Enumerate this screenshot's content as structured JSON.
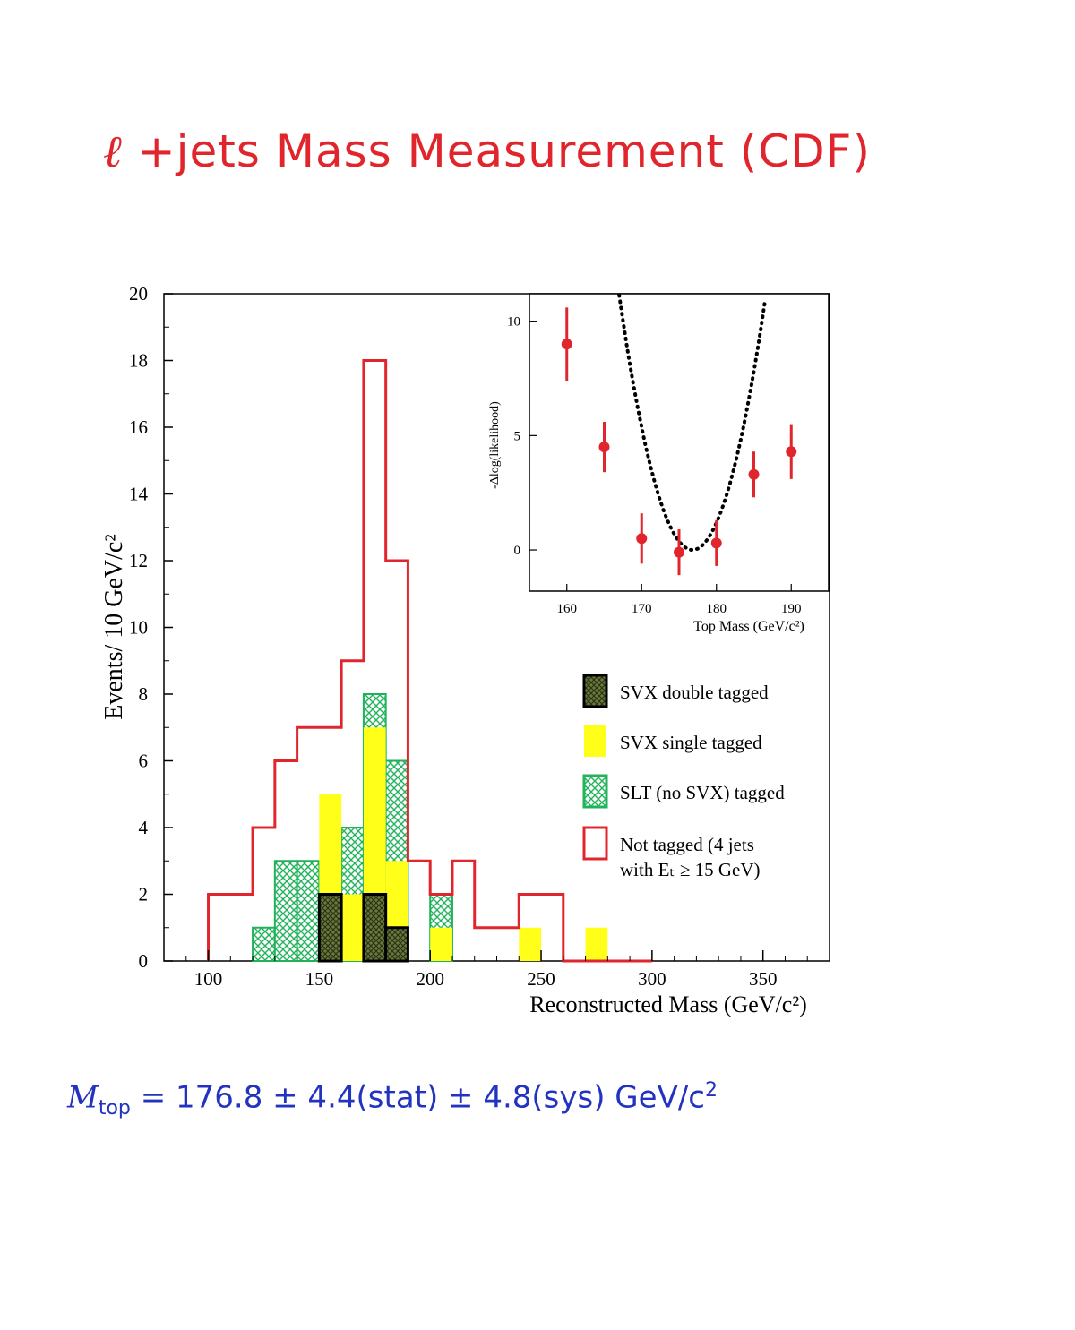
{
  "title_main": "+jets Mass Measurement (CDF)",
  "title_symbol": "ℓ",
  "result": {
    "var": "M",
    "sub": "top",
    "expr": " = 176.8 ± 4.4(stat) ± 4.8(sys)  GeV/c",
    "sup": "2"
  },
  "colors": {
    "not_tagged": "#e0262c",
    "svx_single": "#ffff1a",
    "slt": "#20b35a",
    "svx_double": "#4a5a28",
    "axis": "#000000",
    "inset_points": "#e0262c"
  },
  "chart_data": [
    {
      "type": "bar",
      "title": "",
      "xlabel": "Reconstructed Mass (GeV/c²)",
      "ylabel": "Events/ 10 GeV/c²",
      "xlim": [
        80,
        380
      ],
      "ylim": [
        0,
        20
      ],
      "xticks": [
        "100",
        "150",
        "200",
        "250",
        "300",
        "350"
      ],
      "yticks": [
        "0",
        "2",
        "4",
        "6",
        "8",
        "10",
        "12",
        "14",
        "16",
        "18",
        "20"
      ],
      "bin_width": 10,
      "bin_edges_start": 100,
      "legend_position": "right",
      "series": [
        {
          "name": "Not tagged (4 jets with Eₜ ≥ 15 GeV)",
          "style": "step-outline",
          "values": [
            2,
            2,
            4,
            6,
            7,
            7,
            9,
            18,
            12,
            3,
            2,
            3,
            1,
            1,
            2,
            2,
            0,
            0,
            0,
            0
          ]
        },
        {
          "name": "SLT (no SVX) tagged",
          "style": "hatched",
          "values": [
            0,
            0,
            1,
            3,
            3,
            2,
            4,
            8,
            6,
            0,
            2,
            0,
            0,
            0,
            0,
            0,
            0,
            0,
            0,
            0
          ]
        },
        {
          "name": "SVX single tagged",
          "style": "filled",
          "values": [
            0,
            0,
            0,
            0,
            0,
            5,
            2,
            7,
            3,
            0,
            1,
            0,
            0,
            0,
            1,
            0,
            0,
            1,
            0,
            0
          ]
        },
        {
          "name": "SVX double tagged",
          "style": "dark-hatched",
          "values": [
            0,
            0,
            0,
            0,
            0,
            2,
            0,
            2,
            1,
            0,
            0,
            0,
            0,
            0,
            0,
            0,
            0,
            0,
            0,
            0
          ]
        }
      ],
      "legend": [
        {
          "label": "SVX double tagged",
          "key": "svx_double"
        },
        {
          "label": "SVX single tagged",
          "key": "svx_single"
        },
        {
          "label": "SLT (no SVX) tagged",
          "key": "slt"
        },
        {
          "label": "Not tagged (4 jets",
          "label2": "with Eₜ ≥ 15 GeV)",
          "key": "not_tagged"
        }
      ]
    },
    {
      "type": "scatter",
      "title": "",
      "xlabel": "Top Mass (GeV/c²)",
      "ylabel": "-Δlog(likelihood)",
      "xlim": [
        155,
        195
      ],
      "ylim": [
        -1.8,
        11.2
      ],
      "xticks": [
        "160",
        "170",
        "180",
        "190"
      ],
      "yticks": [
        "0",
        "5",
        "10"
      ],
      "points": [
        {
          "x": 160,
          "y": 9.0,
          "err": 1.6
        },
        {
          "x": 165,
          "y": 4.5,
          "err": 1.1
        },
        {
          "x": 170,
          "y": 0.5,
          "err": 1.1
        },
        {
          "x": 175,
          "y": -0.1,
          "err": 1.0
        },
        {
          "x": 180,
          "y": 0.3,
          "err": 1.0
        },
        {
          "x": 185,
          "y": 3.3,
          "err": 1.0
        },
        {
          "x": 190,
          "y": 4.3,
          "err": 1.2
        }
      ],
      "fit": {
        "style": "dotted",
        "minimum_x": 176.8,
        "minimum_y": 0,
        "curvature": 0.116
      }
    }
  ]
}
